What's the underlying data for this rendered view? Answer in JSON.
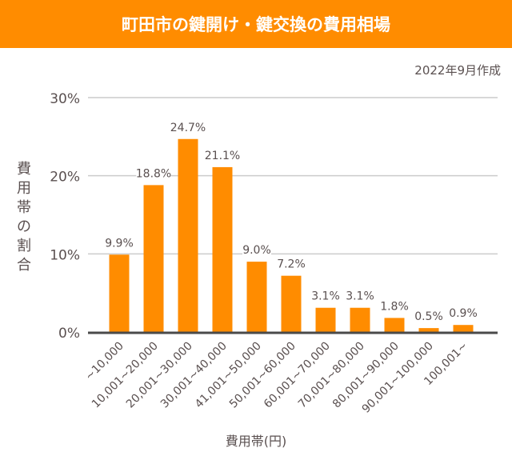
{
  "header": {
    "title": "町田市の鍵開け・鍵交換の費用相場"
  },
  "date_note": "2022年9月作成",
  "chart_data": {
    "type": "bar",
    "title": "町田市の鍵開け・鍵交換の費用相場",
    "xlabel": "費用帯(円)",
    "ylabel": "費用帯の割合",
    "categories": [
      "~10,000",
      "10,001~20,000",
      "20,001~30,000",
      "30,001~40,000",
      "41,001~50,000",
      "50,001~60,000",
      "60,001~70,000",
      "70,001~80,000",
      "80,001~90,000",
      "90,001~100,000",
      "100,001~"
    ],
    "values": [
      9.9,
      18.8,
      24.7,
      21.1,
      9.0,
      7.2,
      3.1,
      3.1,
      1.8,
      0.5,
      0.9
    ],
    "data_labels": [
      "9.9%",
      "18.8%",
      "24.7%",
      "21.1%",
      "9.0%",
      "7.2%",
      "3.1%",
      "3.1%",
      "1.8%",
      "0.5%",
      "0.9%"
    ],
    "ylim": [
      0,
      30
    ],
    "yticks": [
      0,
      10,
      20,
      30
    ],
    "ytick_labels": [
      "0%",
      "10%",
      "20%",
      "30%"
    ],
    "grid": true,
    "bar_color": "#ff8c00",
    "header_color": "#ff8c00"
  }
}
